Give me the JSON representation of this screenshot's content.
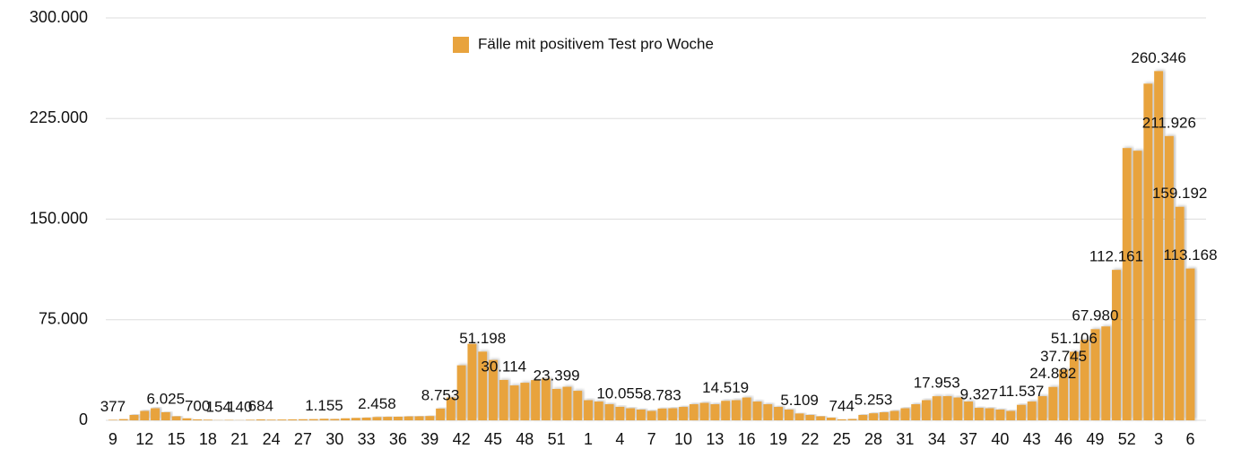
{
  "chart_data": {
    "type": "bar",
    "series": [
      {
        "name": "Fälle mit positivem Test pro Woche",
        "color": "#e8a33d",
        "values": [
          377,
          900,
          4000,
          7000,
          9000,
          6025,
          3000,
          1500,
          700,
          500,
          154,
          300,
          140,
          400,
          684,
          500,
          600,
          700,
          800,
          900,
          1155,
          1000,
          1500,
          1800,
          2000,
          2458,
          2600,
          2700,
          2900,
          3000,
          3200,
          8753,
          17000,
          41000,
          57000,
          51198,
          45000,
          30114,
          26000,
          28000,
          30000,
          31000,
          23399,
          25000,
          22000,
          15000,
          14000,
          12000,
          10055,
          9000,
          8000,
          7000,
          8783,
          9000,
          10000,
          12000,
          13000,
          12000,
          14519,
          15000,
          17000,
          14000,
          12000,
          10000,
          8000,
          5109,
          4000,
          3000,
          2000,
          744,
          1000,
          4000,
          5253,
          6000,
          7000,
          9000,
          12000,
          15000,
          17953,
          18000,
          17000,
          14000,
          9327,
          9000,
          8000,
          7000,
          11537,
          14000,
          18000,
          24882,
          37745,
          51106,
          60000,
          67980,
          70000,
          112161,
          203000,
          201000,
          251000,
          260346,
          211926,
          159192,
          113168
        ],
        "value_labels": [
          "377",
          null,
          null,
          null,
          null,
          "6.025",
          null,
          null,
          "700",
          null,
          "154",
          null,
          "140",
          null,
          "684",
          null,
          null,
          null,
          null,
          null,
          "1.155",
          null,
          null,
          null,
          null,
          "2.458",
          null,
          null,
          null,
          null,
          null,
          "8.753",
          null,
          null,
          null,
          "51.198",
          null,
          "30.114",
          null,
          null,
          null,
          null,
          "23.399",
          null,
          null,
          null,
          null,
          null,
          "10.055",
          null,
          null,
          null,
          "8.783",
          null,
          null,
          null,
          null,
          null,
          "14.519",
          null,
          null,
          null,
          null,
          null,
          null,
          "5.109",
          null,
          null,
          null,
          "744",
          null,
          null,
          "5.253",
          null,
          null,
          null,
          null,
          null,
          "17.953",
          null,
          null,
          null,
          "9.327",
          null,
          null,
          null,
          "11.537",
          null,
          null,
          "24.882",
          "37.745",
          "51.106",
          null,
          "67.980",
          null,
          "112.161",
          null,
          null,
          null,
          "260.346",
          "211.926",
          "159.192",
          "113.168"
        ]
      }
    ],
    "categories": [
      "9",
      null,
      null,
      "12",
      null,
      null,
      "15",
      null,
      null,
      "18",
      null,
      null,
      "21",
      null,
      null,
      "24",
      null,
      null,
      "27",
      null,
      null,
      "30",
      null,
      null,
      "33",
      null,
      null,
      "36",
      null,
      null,
      "39",
      null,
      null,
      "42",
      null,
      null,
      "45",
      null,
      null,
      "48",
      null,
      null,
      "51",
      null,
      null,
      "1",
      null,
      null,
      "4",
      null,
      null,
      "7",
      null,
      null,
      "10",
      null,
      null,
      "13",
      null,
      null,
      "16",
      null,
      null,
      "19",
      null,
      null,
      "22",
      null,
      null,
      "25",
      null,
      null,
      "28",
      null,
      null,
      "31",
      null,
      null,
      "34",
      null,
      null,
      "37",
      null,
      null,
      "40",
      null,
      null,
      "43",
      null,
      null,
      "46",
      null,
      null,
      "49",
      null,
      null,
      "52",
      null,
      null,
      "3",
      null,
      null,
      "6"
    ],
    "ylim": [
      0,
      300000
    ],
    "yticks": [
      0,
      {
        "value": 75000,
        "label": "75.000"
      },
      {
        "value": 150000,
        "label": "150.000"
      },
      {
        "value": 225000,
        "label": "225.000"
      },
      {
        "value": 300000,
        "label": "300.000"
      }
    ],
    "grid": true,
    "legend": "top"
  }
}
